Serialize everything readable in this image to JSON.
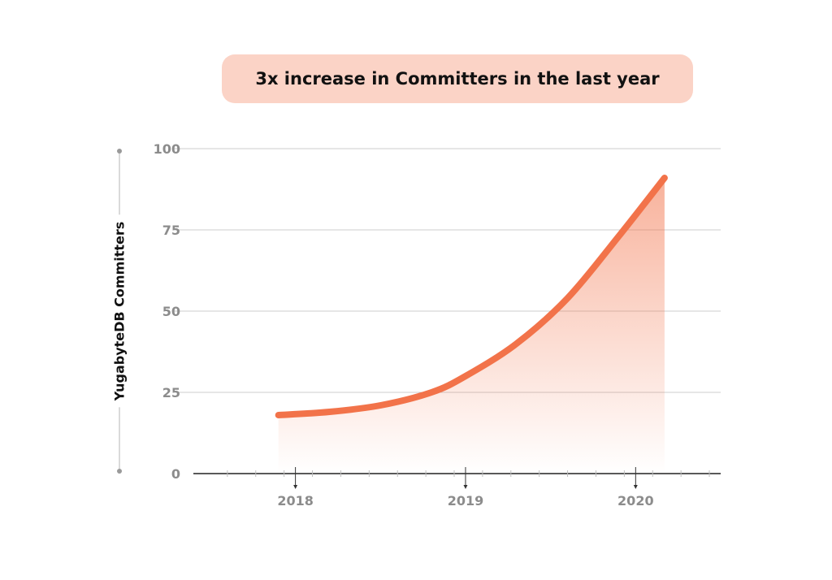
{
  "title": "3x increase in Committers in the last year",
  "colors": {
    "accent": "#f2734a",
    "title_bg": "#fbd3c6",
    "grid": "#cccccc",
    "tick_text": "#8c8c8c"
  },
  "chart_data": {
    "type": "area",
    "title": "3x increase in Committers in the last year",
    "ylabel": "YugabyteDB Committers",
    "xlabel": "",
    "x_ticks": [
      "2018",
      "2019",
      "2020"
    ],
    "y_ticks": [
      "0",
      "25",
      "50",
      "75",
      "100"
    ],
    "ylim": [
      0,
      100
    ],
    "xlim": [
      2017.4,
      2020.5
    ],
    "grid": true,
    "series": [
      {
        "x": [
          2017.9,
          2018.2,
          2018.5,
          2018.8,
          2019.0,
          2019.3,
          2019.6,
          2019.9,
          2020.17
        ],
        "values": [
          18,
          19,
          21,
          25,
          30,
          40,
          54,
          73,
          91
        ]
      }
    ]
  }
}
